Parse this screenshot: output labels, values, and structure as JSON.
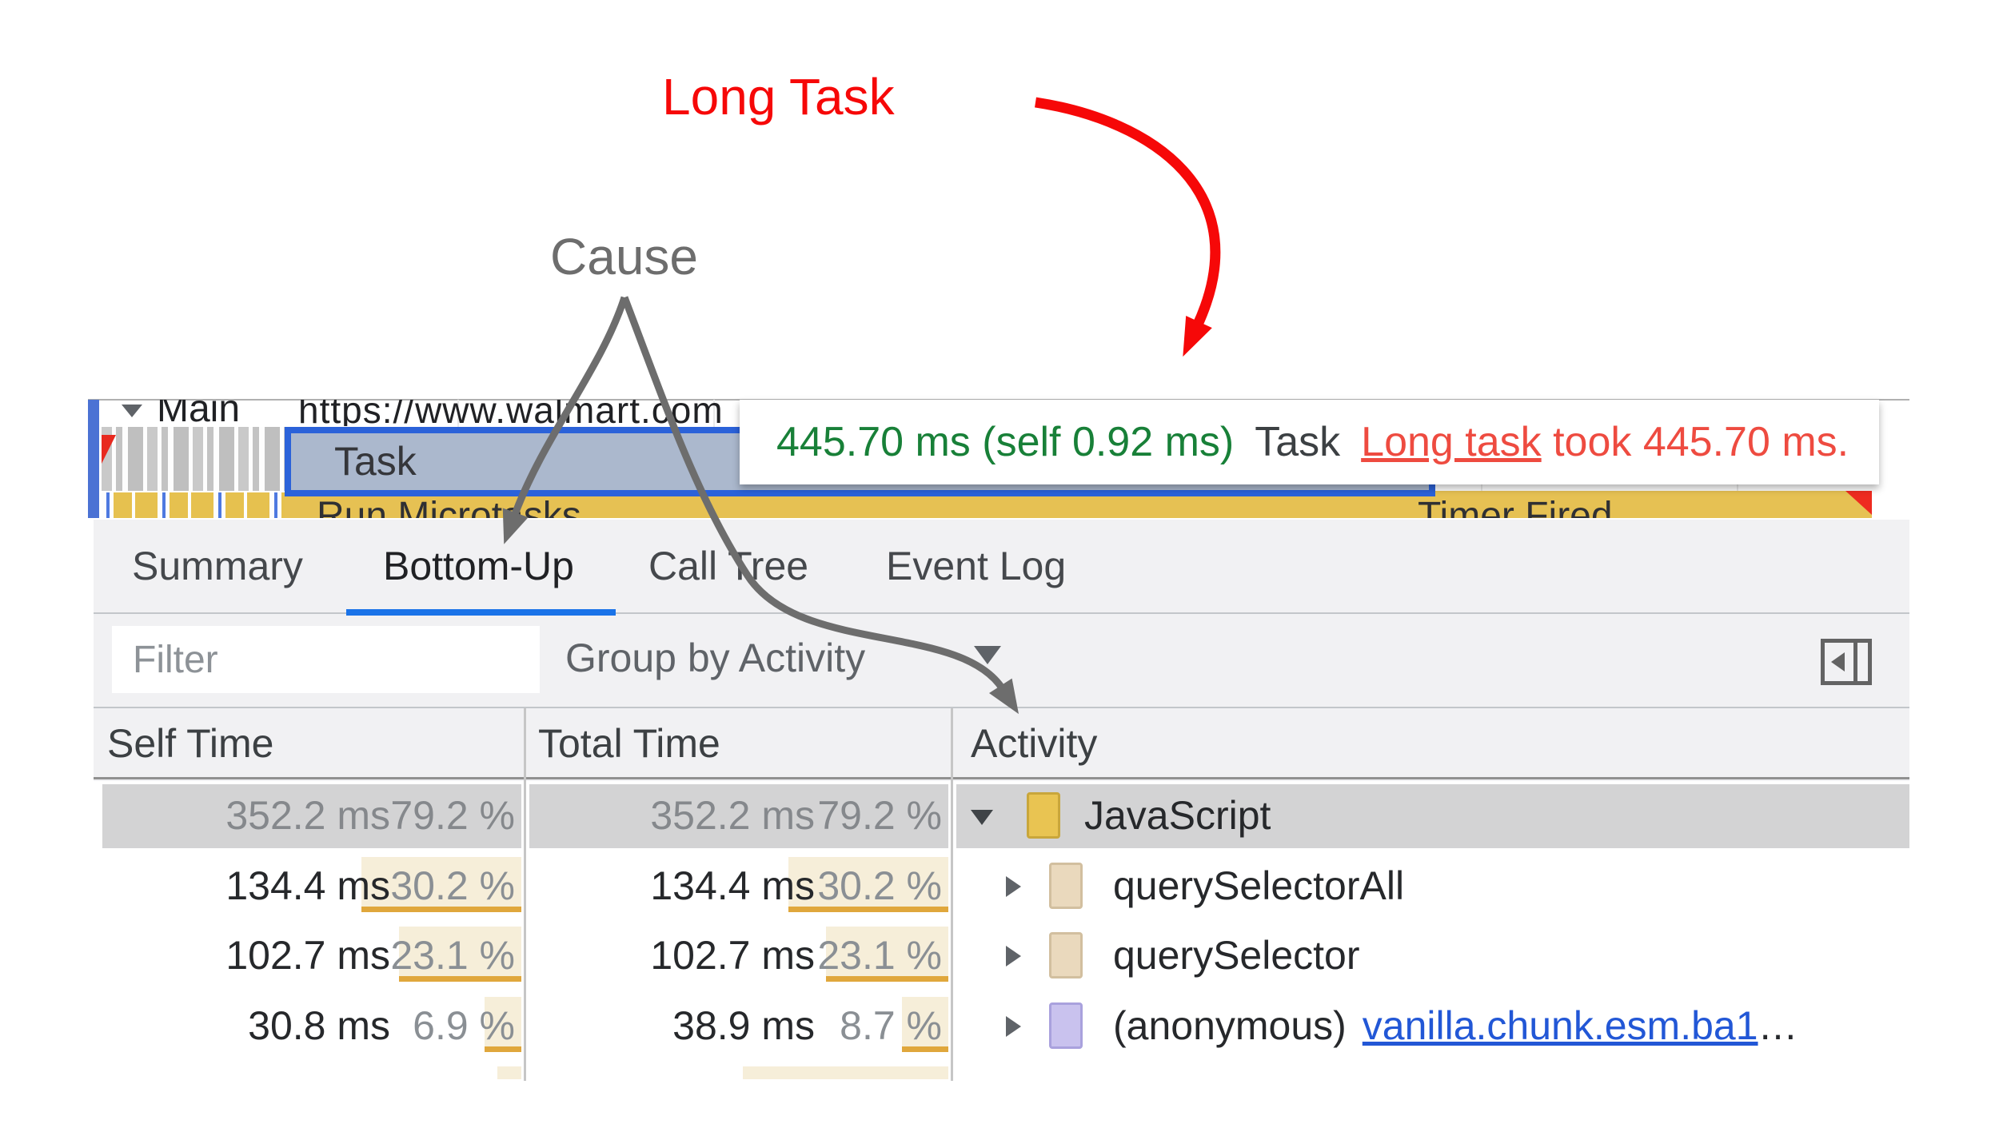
{
  "annotations": {
    "long_task_label": "Long Task",
    "cause_label": "Cause",
    "red": "#f60808",
    "gray": "#6d6d6d"
  },
  "timeline": {
    "track_name": "Main",
    "track_url": "https://www.walmart.com",
    "task_label": "Task",
    "run_microtasks_label": "Run Microtasks",
    "timer_fired_label": "Timer Fired",
    "tooltip": {
      "duration": "445.70 ms (self 0.92 ms)",
      "event": "Task",
      "warning_link": "Long task",
      "warning_rest": " took 445.70 ms."
    }
  },
  "panel": {
    "tabs": [
      {
        "label": "Summary",
        "active": false
      },
      {
        "label": "Bottom-Up",
        "active": true
      },
      {
        "label": "Call Tree",
        "active": false
      },
      {
        "label": "Event Log",
        "active": false
      }
    ],
    "filter_placeholder": "Filter",
    "group_by": "Group by Activity",
    "columns": [
      "Self Time",
      "Total Time",
      "Activity"
    ],
    "rows": [
      {
        "self_time": "352.2 ms",
        "self_pct": "79.2 %",
        "self_pct_num": 79.2,
        "total_time": "352.2 ms",
        "total_pct": "79.2 %",
        "total_pct_num": 79.2,
        "activity": "JavaScript",
        "icon_color": "#e9c452",
        "icon_border": "#c9a63b",
        "expanded": true,
        "selected": true
      },
      {
        "self_time": "134.4 ms",
        "self_pct": "30.2 %",
        "self_pct_num": 30.2,
        "total_time": "134.4 ms",
        "total_pct": "30.2 %",
        "total_pct_num": 30.2,
        "activity": "querySelectorAll",
        "icon_color": "#ead9bd",
        "icon_border": "#d2bf9f",
        "expanded": false,
        "selected": false
      },
      {
        "self_time": "102.7 ms",
        "self_pct": "23.1 %",
        "self_pct_num": 23.1,
        "total_time": "102.7 ms",
        "total_pct": "23.1 %",
        "total_pct_num": 23.1,
        "activity": "querySelector",
        "icon_color": "#ead9bd",
        "icon_border": "#d2bf9f",
        "expanded": false,
        "selected": false
      },
      {
        "self_time": "30.8 ms",
        "self_pct": "6.9 %",
        "self_pct_num": 6.9,
        "total_time": "38.9 ms",
        "total_pct": "8.7 %",
        "total_pct_num": 8.7,
        "activity": "(anonymous)",
        "icon_color": "#c9c2ee",
        "icon_border": "#a9a1dd",
        "expanded": false,
        "selected": false,
        "link": "vanilla.chunk.esm.ba1",
        "link_suffix": "…"
      }
    ],
    "partial_row": {
      "self_bar_width": 30,
      "total_bar_width": 257
    }
  }
}
